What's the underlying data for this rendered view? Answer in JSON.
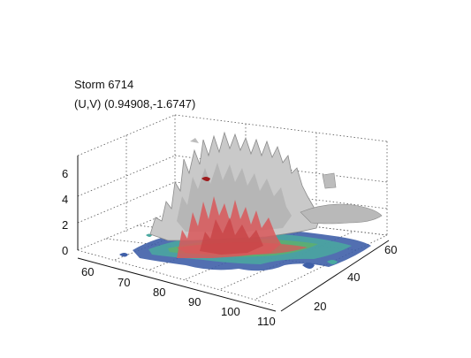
{
  "figure": {
    "title_line1": "Storm 6714",
    "title_line2": "(U,V) (0.94908,-1.6747)"
  },
  "axes": {
    "z_ticks": [
      "0",
      "2",
      "4",
      "6"
    ],
    "x_ticks": [
      "60",
      "70",
      "80",
      "90",
      "100",
      "110"
    ],
    "y_ticks": [
      "20",
      "40",
      "60"
    ]
  },
  "colors": {
    "cloud": "#c9c9c9",
    "cloud_shadow": "#8a8a8a",
    "rain": "#d9585a",
    "rain_dark": "#9e1c1e",
    "base_blue": "#3f5fa8",
    "base_teal": "#4aa9a0",
    "base_green": "#5fb06a",
    "grid": "#555555"
  }
}
